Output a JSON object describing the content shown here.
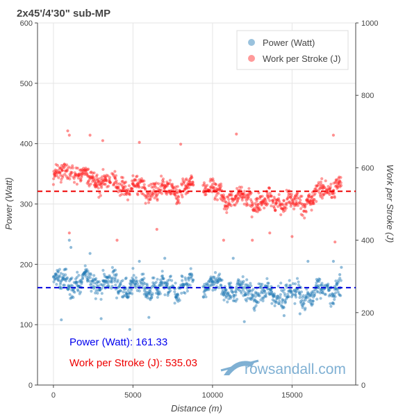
{
  "chart_data": {
    "type": "scatter",
    "title": "2x45'/4'30\" sub-MP",
    "xlabel": "Distance (m)",
    "ylabel": "Power (Watt)",
    "y2label": "Work per Stroke (J)",
    "xlim": [
      -1000,
      19000
    ],
    "ylim": [
      0,
      600
    ],
    "y2lim": [
      0,
      1000
    ],
    "xticks": [
      0,
      5000,
      10000,
      15000
    ],
    "yticks": [
      0,
      100,
      200,
      300,
      400,
      500,
      600
    ],
    "y2ticks": [
      0,
      200,
      400,
      600,
      800,
      1000
    ],
    "grid": true,
    "legend_position": "top-right",
    "series": [
      {
        "name": "Power (Watt)",
        "axis": "left",
        "color": "#1f77b4",
        "mean": 161.33,
        "x_range": [
          0,
          18100
        ],
        "gaps": [
          [
            8800,
            9400
          ]
        ],
        "trend": [
          [
            0,
            170
          ],
          [
            2500,
            172
          ],
          [
            5000,
            163
          ],
          [
            7500,
            160
          ],
          [
            9500,
            165
          ],
          [
            11000,
            160
          ],
          [
            12500,
            152
          ],
          [
            15000,
            150
          ],
          [
            16500,
            152
          ],
          [
            18100,
            162
          ]
        ],
        "spread": 22,
        "outliers": [
          [
            1000,
            240
          ],
          [
            1100,
            228
          ],
          [
            2300,
            218
          ],
          [
            5400,
            205
          ],
          [
            7000,
            210
          ],
          [
            11300,
            210
          ],
          [
            16000,
            205
          ],
          [
            17600,
            205
          ],
          [
            4800,
            92
          ],
          [
            500,
            108
          ],
          [
            3000,
            110
          ],
          [
            12000,
            105
          ],
          [
            14500,
            115
          ],
          [
            15500,
            118
          ],
          [
            6000,
            112
          ],
          [
            18000,
            183
          ],
          [
            18100,
            195
          ]
        ]
      },
      {
        "name": "Work per Stroke (J)",
        "axis": "right",
        "color": "#ff2020",
        "mean": 535.03,
        "x_range": [
          0,
          18100
        ],
        "gaps": [
          [
            8800,
            9400
          ]
        ],
        "trend": [
          [
            0,
            575
          ],
          [
            1000,
            590
          ],
          [
            2500,
            570
          ],
          [
            4000,
            555
          ],
          [
            5000,
            545
          ],
          [
            7000,
            540
          ],
          [
            8500,
            545
          ],
          [
            9500,
            550
          ],
          [
            10500,
            520
          ],
          [
            12500,
            510
          ],
          [
            14000,
            505
          ],
          [
            15500,
            500
          ],
          [
            16500,
            525
          ],
          [
            18100,
            560
          ]
        ],
        "spread": 32,
        "outliers": [
          [
            900,
            702
          ],
          [
            1000,
            690
          ],
          [
            2300,
            690
          ],
          [
            3100,
            675
          ],
          [
            5400,
            670
          ],
          [
            8000,
            665
          ],
          [
            11500,
            693
          ],
          [
            17600,
            690
          ],
          [
            1000,
            420
          ],
          [
            4000,
            400
          ],
          [
            10700,
            400
          ],
          [
            12500,
            400
          ],
          [
            15000,
            410
          ],
          [
            17700,
            395
          ],
          [
            6500,
            430
          ],
          [
            13600,
            420
          ]
        ]
      }
    ],
    "annotations": [
      {
        "label": "Power (Watt): 161.33",
        "color": "#0000ee"
      },
      {
        "label": "Work per Stroke (J): 535.03",
        "color": "#ee0000"
      }
    ]
  },
  "watermark": {
    "text": "rowsandall.com"
  }
}
